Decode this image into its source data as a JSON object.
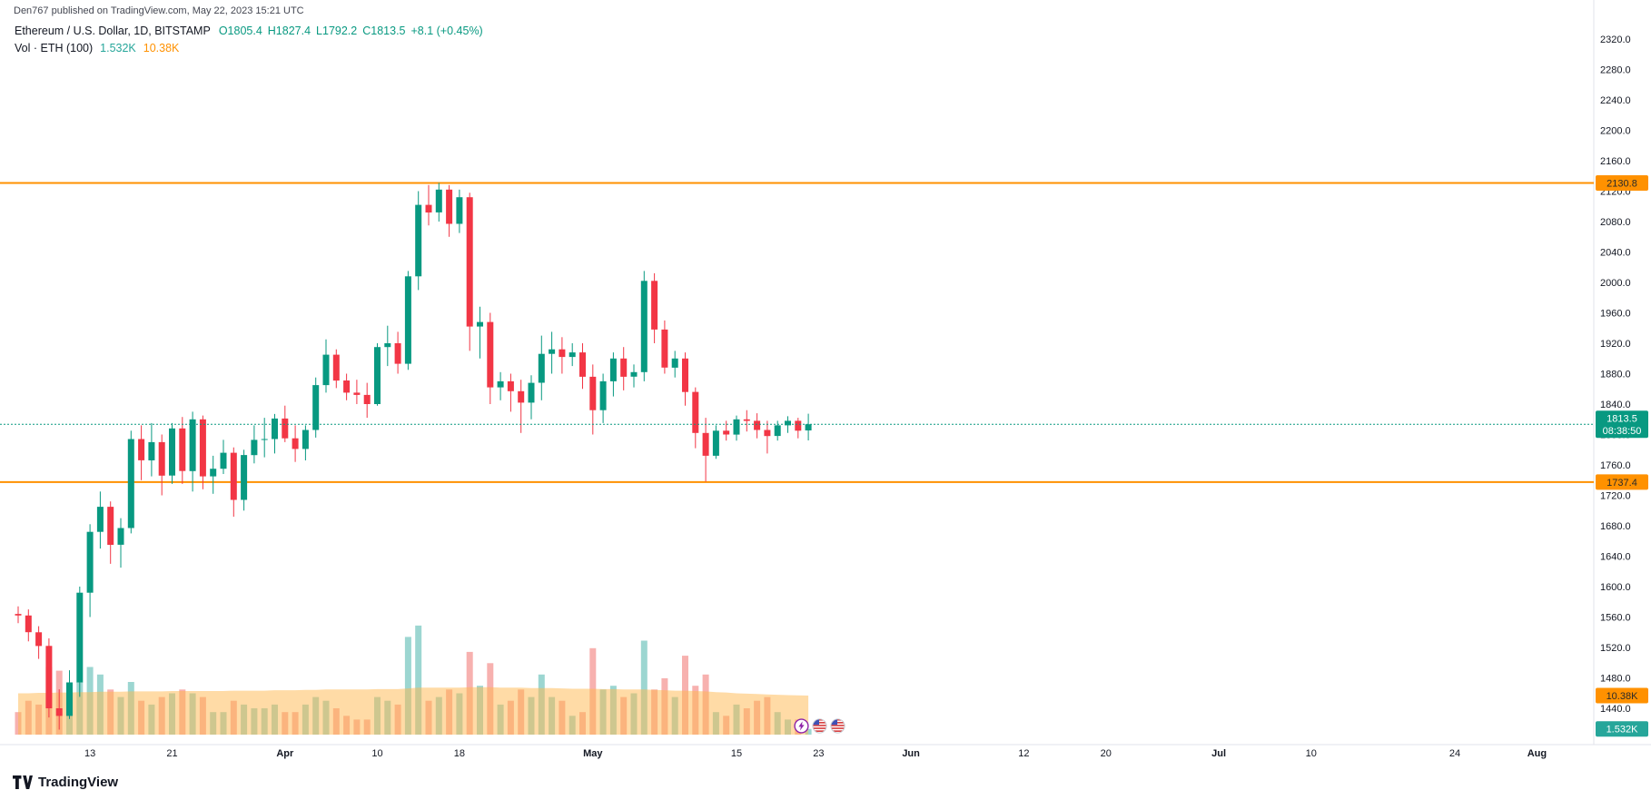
{
  "attribution": "Den767 published on TradingView.com, May 22, 2023 15:21 UTC",
  "legend": {
    "symbol": "Ethereum / U.S. Dollar, 1D, BITSTAMP",
    "ohlc": {
      "open": "O1805.4",
      "high": "H1827.4",
      "low": "L1792.2",
      "close": "C1813.5",
      "change": "+8.1 (+0.45%)"
    },
    "volume": {
      "label": "Vol · ETH (100)",
      "current": "1.532K",
      "ma": "10.38K"
    }
  },
  "logo_text": "TradingView",
  "event_markers": [
    {
      "type": "lightning",
      "color": "#8e24aa"
    },
    {
      "type": "us-flag",
      "color": "#d32f2f"
    },
    {
      "type": "us-flag",
      "color": "#d32f2f"
    }
  ],
  "chart_data": {
    "type": "candlestick",
    "title": "Ethereum / U.S. Dollar",
    "interval": "1D",
    "exchange": "BITSTAMP",
    "start_date": "2023-03-06",
    "last_price": 1813.5,
    "countdown": "08:38:50",
    "price_axis": {
      "min": 1440,
      "max": 2320,
      "step": 40
    },
    "time_axis": [
      {
        "label": "13",
        "day": 7
      },
      {
        "label": "21",
        "day": 15
      },
      {
        "label": "Apr",
        "day": 26
      },
      {
        "label": "10",
        "day": 35
      },
      {
        "label": "18",
        "day": 43
      },
      {
        "label": "May",
        "day": 56
      },
      {
        "label": "15",
        "day": 70
      },
      {
        "label": "23",
        "day": 78
      },
      {
        "label": "Jun",
        "day": 87
      },
      {
        "label": "12",
        "day": 98
      },
      {
        "label": "20",
        "day": 106
      },
      {
        "label": "Jul",
        "day": 117
      },
      {
        "label": "10",
        "day": 126
      },
      {
        "label": "24",
        "day": 140
      },
      {
        "label": "Aug",
        "day": 148
      }
    ],
    "horizontal_lines": [
      {
        "price": 2130.8
      },
      {
        "price": 1737.4
      }
    ],
    "volume_labels": {
      "current": "1.532K",
      "ma": "10.38K"
    },
    "candles": [
      [
        1564,
        1574,
        1552,
        1562,
        6
      ],
      [
        1562,
        1570,
        1528,
        1540,
        9
      ],
      [
        1540,
        1548,
        1505,
        1522,
        8
      ],
      [
        1522,
        1532,
        1428,
        1440,
        18
      ],
      [
        1440,
        1465,
        1412,
        1430,
        17
      ],
      [
        1430,
        1490,
        1426,
        1474,
        12
      ],
      [
        1474,
        1600,
        1455,
        1592,
        14
      ],
      [
        1592,
        1682,
        1560,
        1672,
        18
      ],
      [
        1672,
        1725,
        1650,
        1705,
        16
      ],
      [
        1705,
        1712,
        1630,
        1655,
        12
      ],
      [
        1655,
        1690,
        1625,
        1677,
        10
      ],
      [
        1677,
        1805,
        1670,
        1794,
        14
      ],
      [
        1794,
        1812,
        1740,
        1766,
        9
      ],
      [
        1766,
        1815,
        1745,
        1790,
        8
      ],
      [
        1790,
        1800,
        1720,
        1746,
        10
      ],
      [
        1746,
        1815,
        1735,
        1808,
        11
      ],
      [
        1808,
        1823,
        1735,
        1752,
        12
      ],
      [
        1752,
        1830,
        1725,
        1820,
        11
      ],
      [
        1820,
        1825,
        1728,
        1745,
        10
      ],
      [
        1745,
        1772,
        1722,
        1755,
        6
      ],
      [
        1755,
        1793,
        1748,
        1776,
        6
      ],
      [
        1776,
        1783,
        1692,
        1714,
        9
      ],
      [
        1714,
        1780,
        1700,
        1773,
        8
      ],
      [
        1773,
        1812,
        1762,
        1793,
        7
      ],
      [
        1793,
        1822,
        1770,
        1794,
        7
      ],
      [
        1794,
        1827,
        1775,
        1821,
        8
      ],
      [
        1821,
        1838,
        1790,
        1795,
        6
      ],
      [
        1795,
        1812,
        1764,
        1781,
        6
      ],
      [
        1781,
        1812,
        1766,
        1806,
        8
      ],
      [
        1806,
        1875,
        1796,
        1865,
        10
      ],
      [
        1865,
        1925,
        1855,
        1905,
        9
      ],
      [
        1905,
        1912,
        1861,
        1871,
        7
      ],
      [
        1871,
        1880,
        1845,
        1855,
        5
      ],
      [
        1855,
        1872,
        1840,
        1852,
        4
      ],
      [
        1852,
        1868,
        1822,
        1840,
        4
      ],
      [
        1840,
        1920,
        1838,
        1915,
        10
      ],
      [
        1915,
        1943,
        1890,
        1920,
        9
      ],
      [
        1920,
        1935,
        1880,
        1893,
        8
      ],
      [
        1893,
        2015,
        1885,
        2008,
        26
      ],
      [
        2008,
        2120,
        1990,
        2102,
        29
      ],
      [
        2102,
        2128,
        2075,
        2092,
        9
      ],
      [
        2092,
        2131,
        2080,
        2122,
        10
      ],
      [
        2122,
        2128,
        2060,
        2077,
        12
      ],
      [
        2077,
        2122,
        2065,
        2112,
        11
      ],
      [
        2112,
        2118,
        1910,
        1942,
        22
      ],
      [
        1942,
        1968,
        1900,
        1948,
        13
      ],
      [
        1948,
        1960,
        1840,
        1862,
        19
      ],
      [
        1862,
        1882,
        1845,
        1870,
        8
      ],
      [
        1870,
        1880,
        1830,
        1857,
        9
      ],
      [
        1857,
        1872,
        1802,
        1842,
        12
      ],
      [
        1842,
        1878,
        1820,
        1868,
        10
      ],
      [
        1868,
        1930,
        1845,
        1906,
        16
      ],
      [
        1906,
        1935,
        1880,
        1912,
        10
      ],
      [
        1912,
        1928,
        1880,
        1902,
        9
      ],
      [
        1902,
        1920,
        1890,
        1908,
        5
      ],
      [
        1908,
        1920,
        1860,
        1876,
        6
      ],
      [
        1876,
        1892,
        1800,
        1832,
        23
      ],
      [
        1832,
        1880,
        1815,
        1870,
        12
      ],
      [
        1870,
        1908,
        1850,
        1900,
        13
      ],
      [
        1900,
        1915,
        1858,
        1876,
        10
      ],
      [
        1876,
        1892,
        1862,
        1882,
        11
      ],
      [
        1882,
        2015,
        1870,
        2002,
        25
      ],
      [
        2002,
        2012,
        1920,
        1938,
        12
      ],
      [
        1938,
        1950,
        1880,
        1888,
        15
      ],
      [
        1888,
        1910,
        1875,
        1900,
        10
      ],
      [
        1900,
        1908,
        1838,
        1856,
        21
      ],
      [
        1856,
        1862,
        1782,
        1802,
        13
      ],
      [
        1802,
        1822,
        1738,
        1772,
        16
      ],
      [
        1772,
        1812,
        1768,
        1805,
        6
      ],
      [
        1805,
        1818,
        1792,
        1800,
        5
      ],
      [
        1800,
        1825,
        1792,
        1820,
        8
      ],
      [
        1820,
        1832,
        1804,
        1818,
        7
      ],
      [
        1818,
        1828,
        1795,
        1806,
        9
      ],
      [
        1806,
        1818,
        1775,
        1798,
        10
      ],
      [
        1798,
        1818,
        1792,
        1812,
        6
      ],
      [
        1812,
        1824,
        1802,
        1818,
        4
      ],
      [
        1818,
        1822,
        1795,
        1805,
        4
      ],
      [
        1805.4,
        1827.4,
        1792.2,
        1813.5,
        1.532
      ]
    ],
    "volume_ma": [
      11.0,
      11.0,
      11.1,
      11.1,
      11.2,
      11.2,
      11.3,
      11.3,
      11.4,
      11.4,
      11.4,
      11.5,
      11.5,
      11.5,
      11.5,
      11.6,
      11.6,
      11.6,
      11.6,
      11.6,
      11.6,
      11.7,
      11.7,
      11.7,
      11.7,
      11.8,
      11.8,
      11.8,
      11.9,
      11.9,
      12.0,
      12.0,
      12.0,
      12.0,
      12.0,
      12.1,
      12.1,
      12.1,
      12.3,
      12.5,
      12.5,
      12.5,
      12.5,
      12.5,
      12.6,
      12.6,
      12.6,
      12.5,
      12.5,
      12.5,
      12.4,
      12.4,
      12.4,
      12.3,
      12.2,
      12.2,
      12.2,
      12.1,
      12.1,
      12.0,
      12.0,
      12.0,
      11.9,
      11.8,
      11.7,
      11.7,
      11.6,
      11.5,
      11.3,
      11.2,
      11.0,
      10.9,
      10.8,
      10.7,
      10.6,
      10.5,
      10.45,
      10.38
    ],
    "colors": {
      "up": "#089981",
      "down": "#f23645",
      "vol_up": "#26a69a",
      "vol_down": "#ef5350",
      "accent_orange": "#ff9100",
      "vol_ma_fill": "#ffb74d",
      "axis_text": "#131722"
    }
  }
}
